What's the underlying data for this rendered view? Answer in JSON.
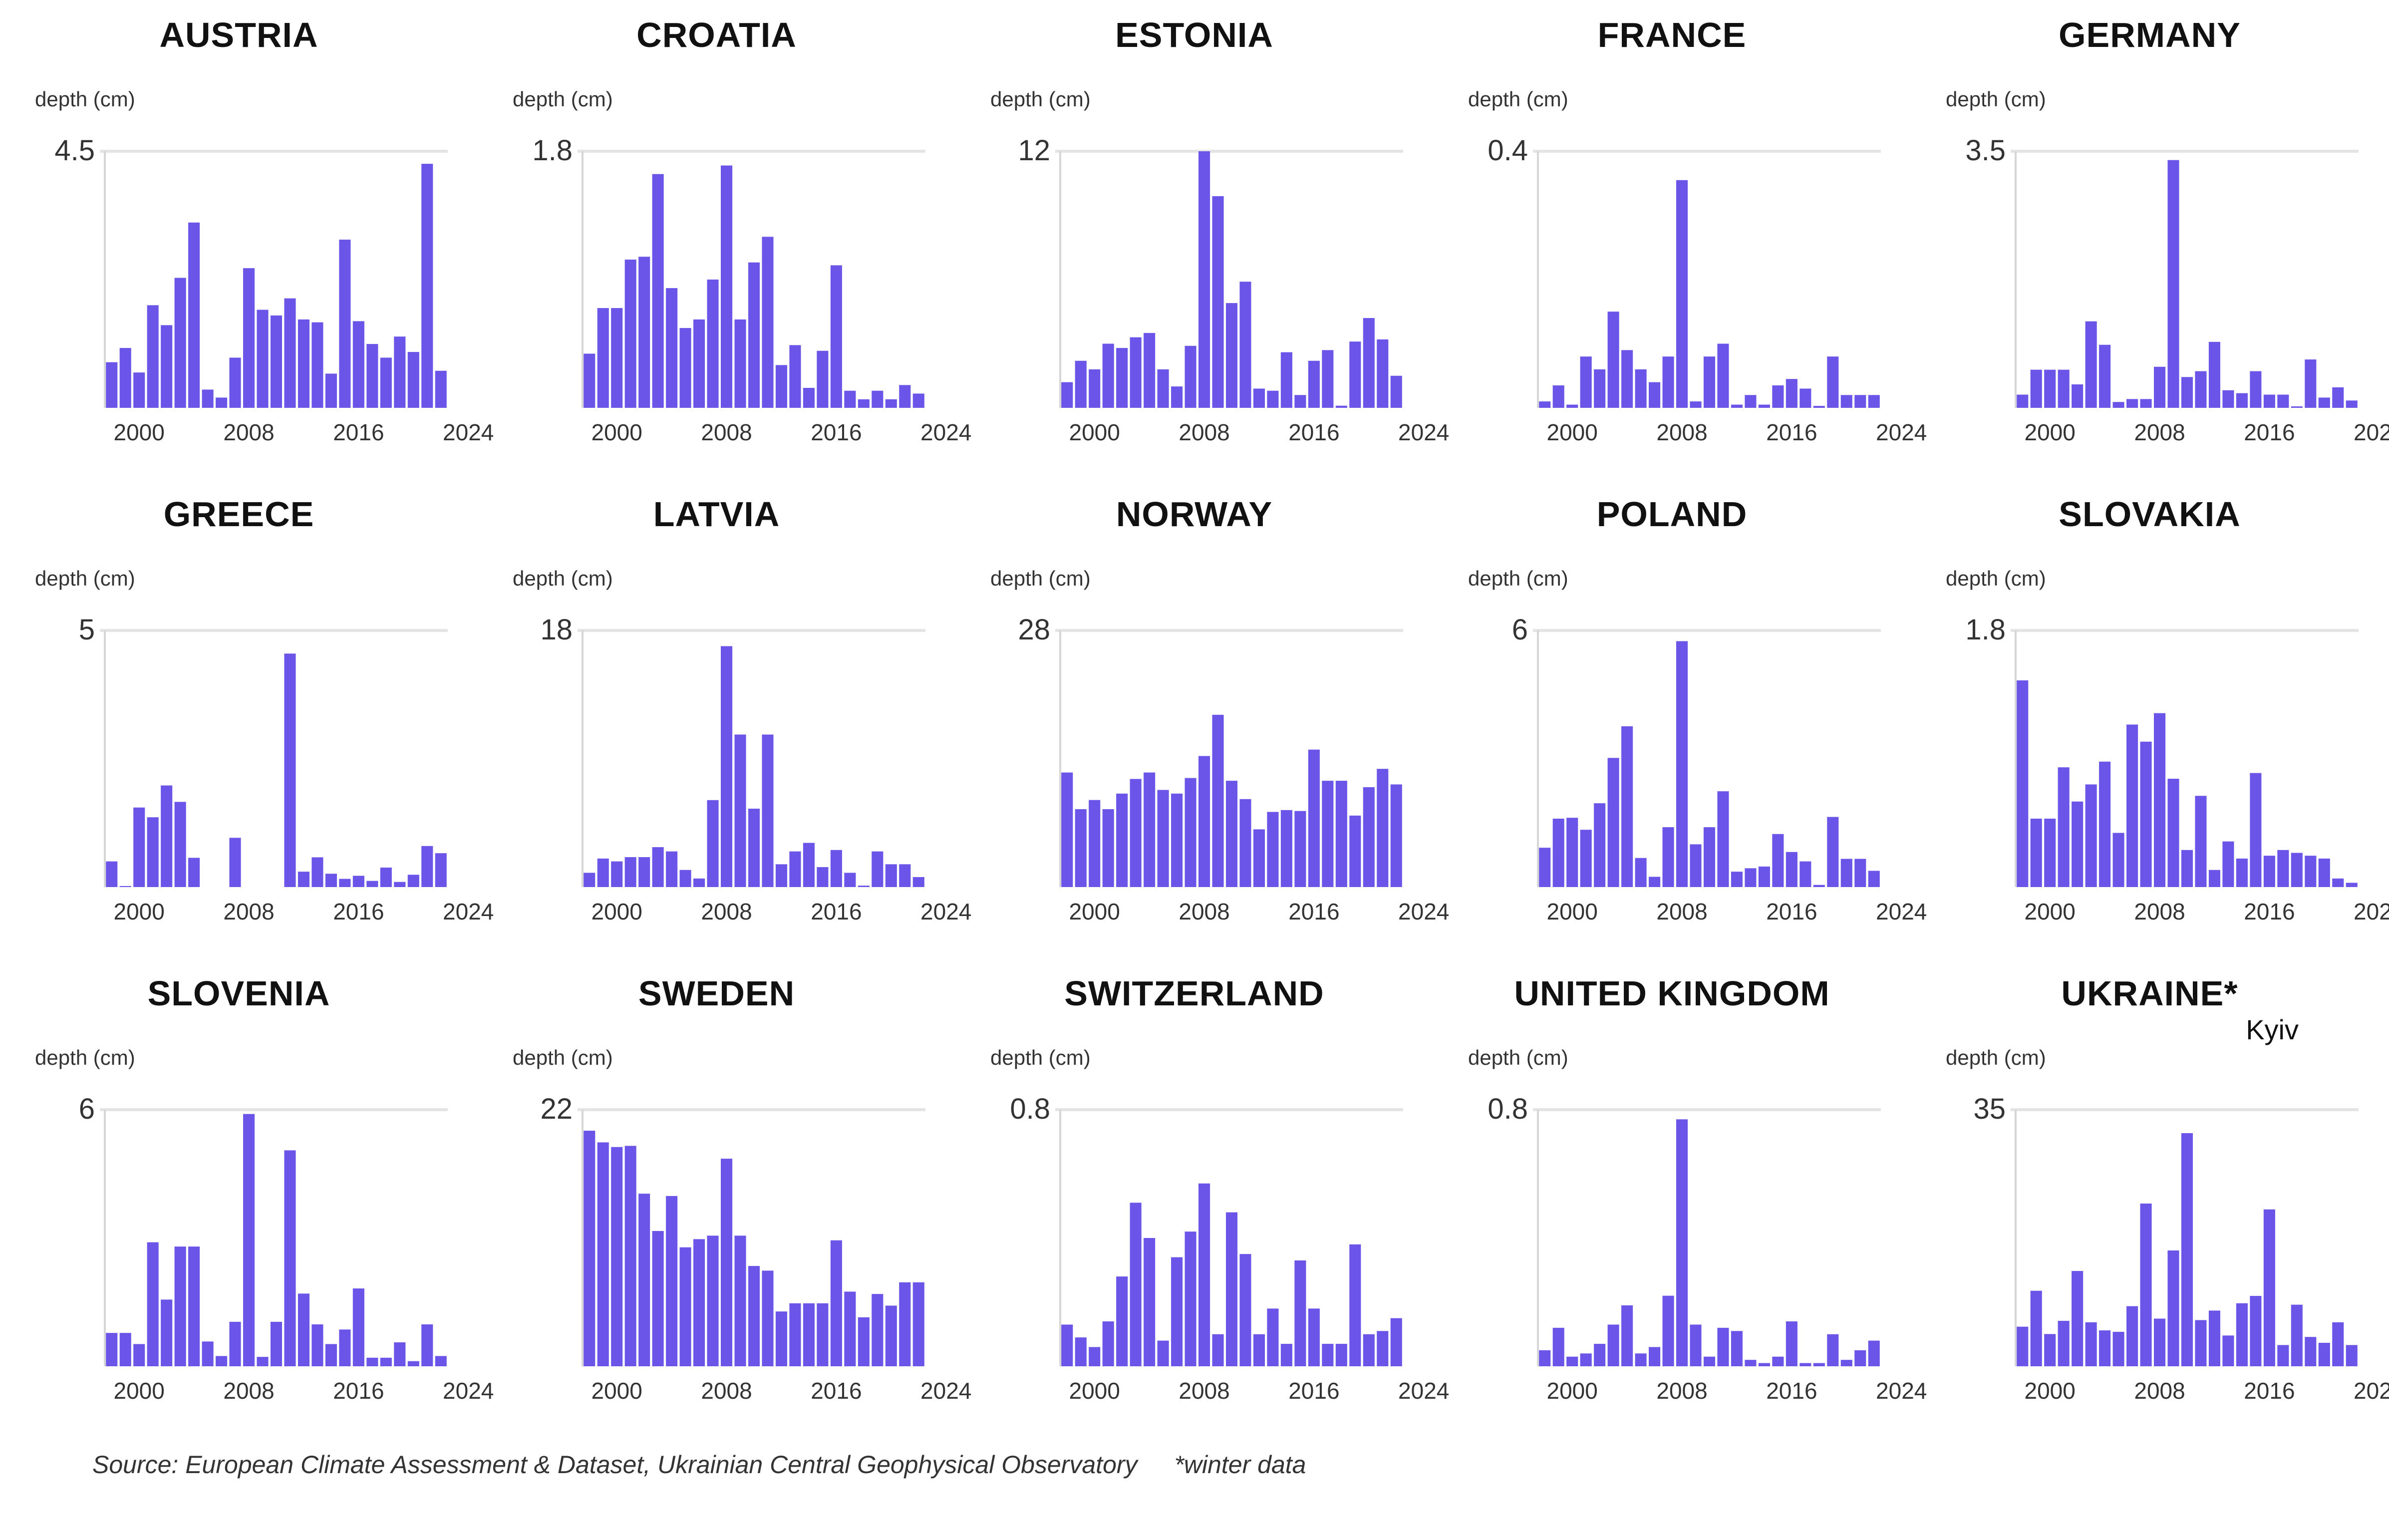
{
  "chart_data": [
    {
      "type": "bar",
      "title": "AUSTRIA",
      "ylabel": "depth (cm)",
      "ytick": "4.5",
      "ylim": [
        0,
        4.5
      ],
      "xticks": [
        "2000",
        "2008",
        "2016",
        "2024"
      ],
      "x_start": 1998,
      "values": [
        0.8,
        1.05,
        0.62,
        1.8,
        1.45,
        2.28,
        3.25,
        0.32,
        0.18,
        0.88,
        2.45,
        1.72,
        1.62,
        1.92,
        1.55,
        1.5,
        0.6,
        2.95,
        1.52,
        1.12,
        0.88,
        1.25,
        0.98,
        4.28,
        0.65
      ]
    },
    {
      "type": "bar",
      "title": "CROATIA",
      "ylabel": "depth (cm)",
      "ytick": "1.8",
      "ylim": [
        0,
        1.8
      ],
      "xticks": [
        "2000",
        "2008",
        "2016",
        "2024"
      ],
      "x_start": 1998,
      "values": [
        0.38,
        0.7,
        0.7,
        1.04,
        1.06,
        1.64,
        0.84,
        0.56,
        0.62,
        0.9,
        1.7,
        0.62,
        1.02,
        1.2,
        0.3,
        0.44,
        0.14,
        0.4,
        1.0,
        0.12,
        0.06,
        0.12,
        0.06,
        0.16,
        0.1
      ]
    },
    {
      "type": "bar",
      "title": "ESTONIA",
      "ylabel": "depth (cm)",
      "ytick": "12",
      "ylim": [
        0,
        12
      ],
      "xticks": [
        "2000",
        "2008",
        "2016",
        "2024"
      ],
      "x_start": 1998,
      "values": [
        1.2,
        2.2,
        1.8,
        3.0,
        2.8,
        3.3,
        3.5,
        1.8,
        1.0,
        2.9,
        12.0,
        9.9,
        4.9,
        5.9,
        0.9,
        0.8,
        2.6,
        0.6,
        2.2,
        2.7,
        0.1,
        3.1,
        4.2,
        3.2,
        1.5
      ]
    },
    {
      "type": "bar",
      "title": "FRANCE",
      "ylabel": "depth (cm)",
      "ytick": "0.4",
      "ylim": [
        0,
        0.4
      ],
      "xticks": [
        "2000",
        "2008",
        "2016",
        "2024"
      ],
      "x_start": 1998,
      "values": [
        0.01,
        0.035,
        0.005,
        0.08,
        0.06,
        0.15,
        0.09,
        0.06,
        0.04,
        0.08,
        0.355,
        0.01,
        0.08,
        0.1,
        0.005,
        0.02,
        0.005,
        0.035,
        0.045,
        0.03,
        0.003,
        0.08,
        0.02,
        0.02,
        0.02
      ]
    },
    {
      "type": "bar",
      "title": "GERMANY",
      "ylabel": "depth (cm)",
      "ytick": "3.5",
      "ylim": [
        0,
        3.5
      ],
      "xticks": [
        "2000",
        "2008",
        "2016",
        "2024"
      ],
      "x_start": 1998,
      "values": [
        0.18,
        0.52,
        0.52,
        0.52,
        0.32,
        1.18,
        0.86,
        0.08,
        0.12,
        0.12,
        0.56,
        3.38,
        0.42,
        0.5,
        0.9,
        0.24,
        0.2,
        0.5,
        0.18,
        0.18,
        0.02,
        0.66,
        0.14,
        0.28,
        0.1
      ]
    },
    {
      "type": "bar",
      "title": "GREECE",
      "ylabel": "depth (cm)",
      "ytick": "5",
      "ylim": [
        0,
        5
      ],
      "xticks": [
        "2000",
        "2008",
        "2016",
        "2024"
      ],
      "x_start": 1998,
      "values": [
        0.5,
        0.02,
        1.55,
        1.36,
        1.98,
        1.66,
        0.57,
        0.0,
        0.0,
        0.96,
        0.0,
        0.0,
        0.0,
        4.55,
        0.3,
        0.58,
        0.26,
        0.16,
        0.22,
        0.12,
        0.38,
        0.1,
        0.24,
        0.8,
        0.66
      ]
    },
    {
      "type": "bar",
      "title": "LATVIA",
      "ylabel": "depth (cm)",
      "ytick": "18",
      "ylim": [
        0,
        18
      ],
      "xticks": [
        "2000",
        "2008",
        "2016",
        "2024"
      ],
      "x_start": 1998,
      "values": [
        1.0,
        2.0,
        1.8,
        2.1,
        2.1,
        2.8,
        2.5,
        1.2,
        0.6,
        6.1,
        16.9,
        10.7,
        5.5,
        10.7,
        1.6,
        2.5,
        3.1,
        1.4,
        2.6,
        1.0,
        0.1,
        2.5,
        1.6,
        1.6,
        0.7
      ]
    },
    {
      "type": "bar",
      "title": "NORWAY",
      "ylabel": "depth (cm)",
      "ytick": "28",
      "ylim": [
        0,
        28
      ],
      "xticks": [
        "2000",
        "2008",
        "2016",
        "2024"
      ],
      "x_start": 1998,
      "values": [
        12.5,
        8.5,
        9.5,
        8.5,
        10.2,
        11.8,
        12.5,
        10.6,
        10.2,
        11.9,
        14.3,
        18.8,
        11.6,
        9.6,
        6.3,
        8.2,
        8.4,
        8.3,
        15.0,
        11.6,
        11.6,
        7.8,
        10.9,
        12.9,
        11.2
      ]
    },
    {
      "type": "bar",
      "title": "POLAND",
      "ylabel": "depth (cm)",
      "ytick": "6",
      "ylim": [
        0,
        6
      ],
      "xticks": [
        "2000",
        "2008",
        "2016",
        "2024"
      ],
      "x_start": 1998,
      "values": [
        0.92,
        1.6,
        1.62,
        1.34,
        1.96,
        3.02,
        3.76,
        0.68,
        0.24,
        1.4,
        5.75,
        1.0,
        1.4,
        2.24,
        0.36,
        0.44,
        0.48,
        1.24,
        0.82,
        0.6,
        0.05,
        1.64,
        0.66,
        0.66,
        0.38
      ]
    },
    {
      "type": "bar",
      "title": "SLOVAKIA",
      "ylabel": "depth (cm)",
      "ytick": "1.8",
      "ylim": [
        0,
        1.8
      ],
      "xticks": [
        "2000",
        "2008",
        "2016",
        "2024"
      ],
      "x_start": 1998,
      "values": [
        1.45,
        0.48,
        0.48,
        0.84,
        0.6,
        0.72,
        0.88,
        0.38,
        1.14,
        1.02,
        1.22,
        0.76,
        0.26,
        0.64,
        0.12,
        0.32,
        0.2,
        0.8,
        0.22,
        0.26,
        0.24,
        0.22,
        0.2,
        0.06,
        0.03
      ]
    },
    {
      "type": "bar",
      "title": "SLOVENIA",
      "ylabel": "depth (cm)",
      "ytick": "6",
      "ylim": [
        0,
        6
      ],
      "xticks": [
        "2000",
        "2008",
        "2016",
        "2024"
      ],
      "x_start": 1998,
      "values": [
        0.78,
        0.78,
        0.52,
        2.9,
        1.56,
        2.8,
        2.8,
        0.58,
        0.24,
        1.04,
        5.9,
        0.22,
        1.04,
        5.05,
        1.7,
        0.98,
        0.52,
        0.86,
        1.82,
        0.2,
        0.2,
        0.56,
        0.12,
        0.98,
        0.24
      ]
    },
    {
      "type": "bar",
      "title": "SWEDEN",
      "ylabel": "depth (cm)",
      "ytick": "22",
      "ylim": [
        0,
        22
      ],
      "xticks": [
        "2000",
        "2008",
        "2016",
        "2024"
      ],
      "x_start": 1998,
      "values": [
        20.2,
        19.2,
        18.8,
        18.9,
        14.8,
        11.6,
        14.6,
        10.2,
        10.9,
        11.2,
        17.8,
        11.2,
        8.6,
        8.2,
        4.7,
        5.4,
        5.4,
        5.4,
        10.8,
        6.4,
        4.2,
        6.2,
        5.2,
        7.2,
        7.2
      ]
    },
    {
      "type": "bar",
      "title": "SWITZERLAND",
      "ylabel": "depth (cm)",
      "ytick": "0.8",
      "ylim": [
        0,
        0.8
      ],
      "xticks": [
        "2000",
        "2008",
        "2016",
        "2024"
      ],
      "x_start": 1998,
      "values": [
        0.13,
        0.09,
        0.06,
        0.14,
        0.28,
        0.51,
        0.4,
        0.08,
        0.34,
        0.42,
        0.57,
        0.1,
        0.48,
        0.35,
        0.1,
        0.18,
        0.07,
        0.33,
        0.18,
        0.07,
        0.07,
        0.38,
        0.1,
        0.11,
        0.15
      ]
    },
    {
      "type": "bar",
      "title": "UNITED KINGDOM",
      "ylabel": "depth (cm)",
      "ytick": "0.8",
      "ylim": [
        0,
        0.8
      ],
      "xticks": [
        "2000",
        "2008",
        "2016",
        "2024"
      ],
      "x_start": 1998,
      "values": [
        0.05,
        0.12,
        0.03,
        0.04,
        0.07,
        0.13,
        0.19,
        0.04,
        0.06,
        0.22,
        0.77,
        0.13,
        0.03,
        0.12,
        0.11,
        0.02,
        0.01,
        0.03,
        0.14,
        0.01,
        0.01,
        0.1,
        0.02,
        0.05,
        0.08
      ]
    },
    {
      "type": "bar",
      "title": "UKRAINE*",
      "subtitle": "Kyiv",
      "ylabel": "depth (cm)",
      "ytick": "35",
      "ylim": [
        0,
        35
      ],
      "xticks": [
        "2000",
        "2008",
        "2016",
        "2024"
      ],
      "x_start": 1998,
      "values": [
        5.4,
        10.3,
        4.4,
        6.2,
        13.0,
        6.0,
        4.9,
        4.7,
        8.2,
        22.2,
        6.5,
        15.8,
        31.8,
        6.3,
        7.6,
        4.2,
        8.6,
        9.6,
        21.4,
        2.9,
        8.4,
        4.0,
        3.2,
        6.0,
        2.9
      ]
    }
  ],
  "footer": {
    "source": "Source: European Climate Assessment & Dataset, Ukrainian Central Geophysical Observatory",
    "note": "*winter data"
  },
  "colors": {
    "bar": "#6a55e8",
    "grid": "#e4e4e4",
    "axis": "#d6d6d6",
    "text": "#333333"
  }
}
